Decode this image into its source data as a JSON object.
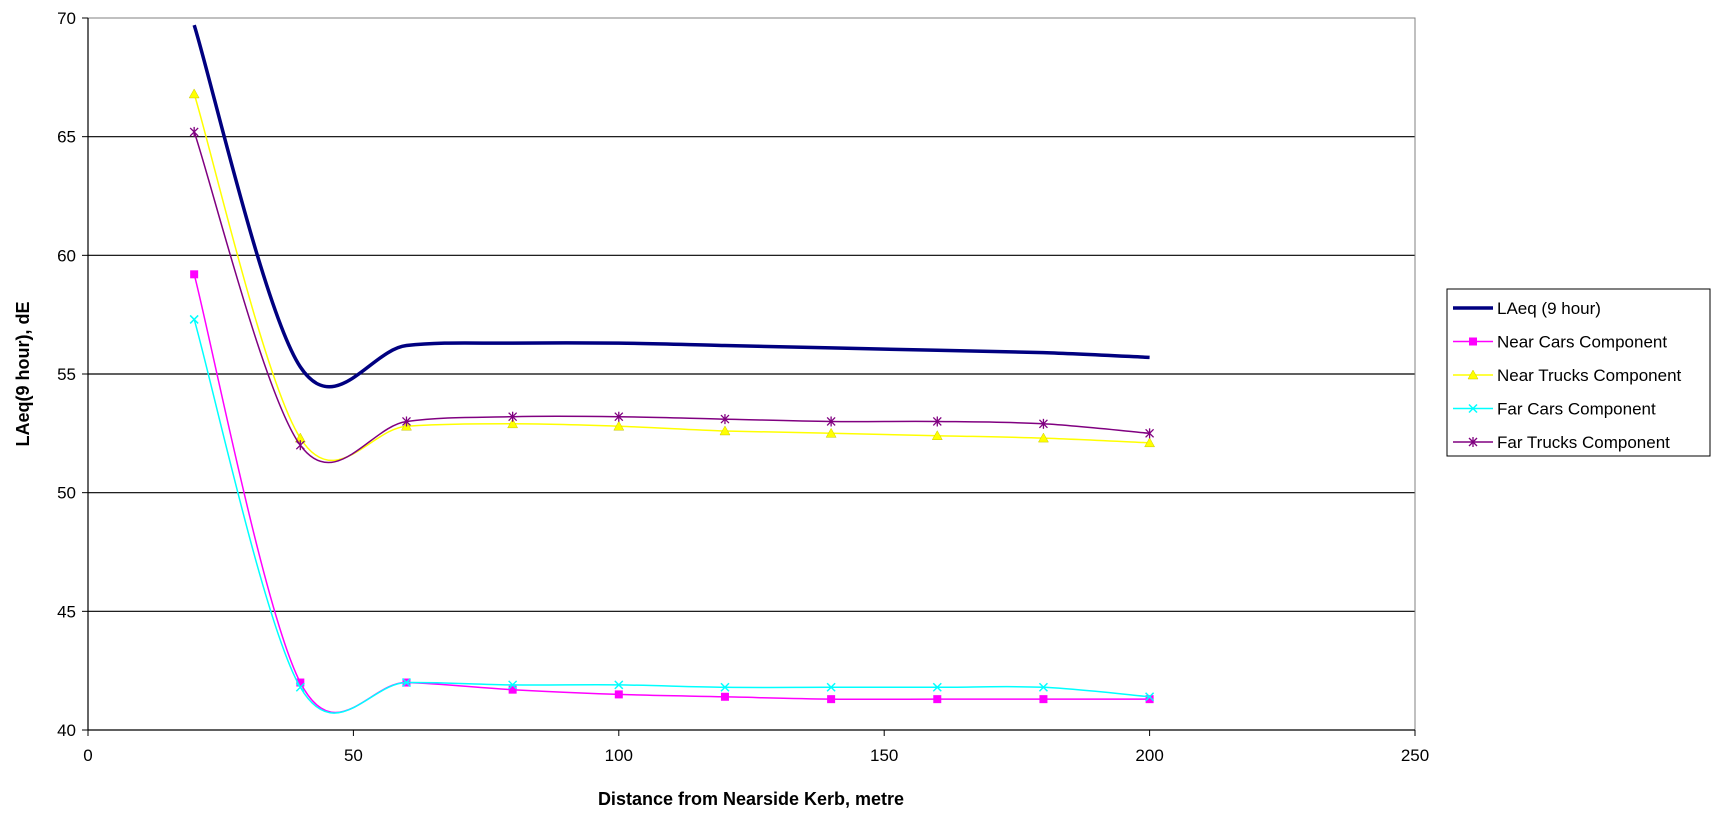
{
  "chart_data": {
    "type": "line",
    "title": "",
    "xlabel": "Distance from Nearside Kerb, metre",
    "ylabel": "LAeq(9 hour),  dE",
    "xlim": [
      0,
      250
    ],
    "ylim": [
      40,
      70
    ],
    "xticks": [
      0,
      50,
      100,
      150,
      200,
      250
    ],
    "yticks": [
      40,
      45,
      50,
      55,
      60,
      65,
      70
    ],
    "grid": "horizontal",
    "legend_position": "right",
    "x": [
      20,
      40,
      60,
      80,
      100,
      120,
      140,
      160,
      180,
      200
    ],
    "series": [
      {
        "name": "LAeq (9 hour)",
        "color": "#000080",
        "marker": "none",
        "values": [
          69.7,
          55.3,
          56.2,
          56.3,
          56.3,
          56.2,
          56.1,
          56.0,
          55.9,
          55.7
        ]
      },
      {
        "name": "Near Cars Component",
        "color": "#ff00ff",
        "marker": "square",
        "values": [
          59.2,
          42.0,
          42.0,
          41.7,
          41.5,
          41.4,
          41.3,
          41.3,
          41.3,
          41.3
        ]
      },
      {
        "name": "Near Trucks Component",
        "color": "#ffff00",
        "marker": "triangle",
        "values": [
          66.8,
          52.3,
          52.8,
          52.9,
          52.8,
          52.6,
          52.5,
          52.4,
          52.3,
          52.1
        ]
      },
      {
        "name": "Far Cars Component",
        "color": "#00ffff",
        "marker": "x",
        "values": [
          57.3,
          41.8,
          42.0,
          41.9,
          41.9,
          41.8,
          41.8,
          41.8,
          41.8,
          41.4
        ]
      },
      {
        "name": "Far Trucks Component",
        "color": "#800080",
        "marker": "star",
        "values": [
          65.2,
          52.0,
          53.0,
          53.2,
          53.2,
          53.1,
          53.0,
          53.0,
          52.9,
          52.5
        ]
      }
    ]
  }
}
